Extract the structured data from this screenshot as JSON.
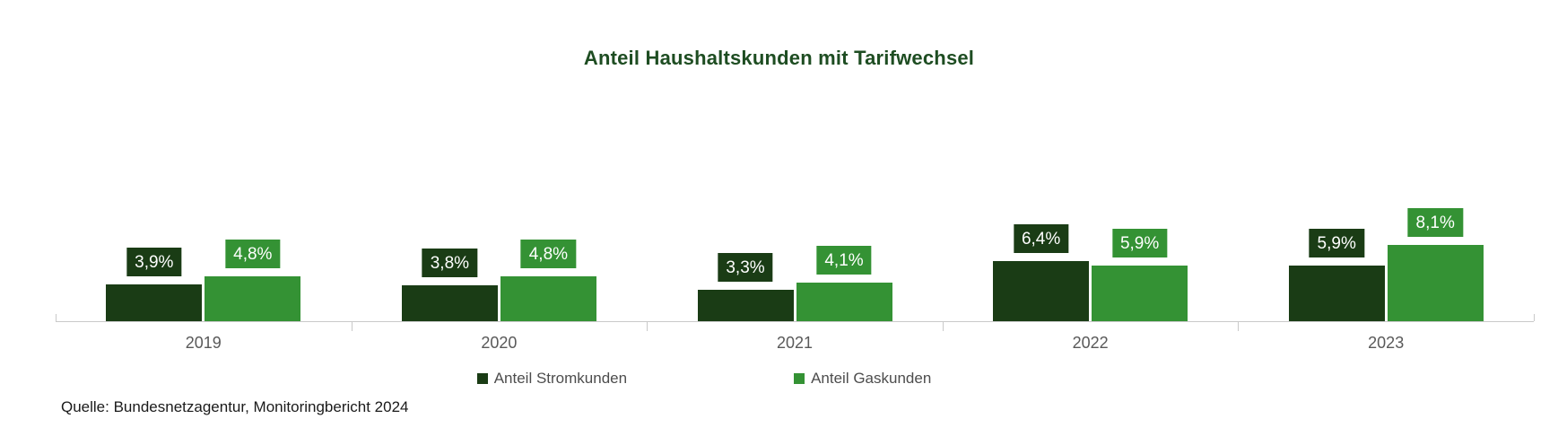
{
  "title": "Anteil Haushaltskunden mit Tarifwechsel",
  "source": "Quelle: Bundesnetzagentur, Monitoringbericht 2024",
  "colors": {
    "strom": "#1a3c15",
    "gas": "#349234",
    "title": "#1e4d22",
    "axis": "#c9c9c9",
    "tick_label": "#595959",
    "value_label_text": "#ffffff"
  },
  "chart_data": {
    "type": "bar",
    "title": "Anteil Haushaltskunden mit Tarifwechsel",
    "categories": [
      "2019",
      "2020",
      "2021",
      "2022",
      "2023"
    ],
    "series": [
      {
        "name": "Anteil Stromkunden",
        "color_key": "strom",
        "values": [
          3.9,
          3.8,
          3.3,
          6.4,
          5.9
        ],
        "labels": [
          "3,9%",
          "3,8%",
          "3,3%",
          "6,4%",
          "5,9%"
        ]
      },
      {
        "name": "Anteil Gaskunden",
        "color_key": "gas",
        "values": [
          4.8,
          4.8,
          4.1,
          5.9,
          8.1
        ],
        "labels": [
          "4,8%",
          "4,8%",
          "4,1%",
          "5,9%",
          "8,1%"
        ]
      }
    ],
    "xlabel": "",
    "ylabel": "",
    "ylim": [
      0,
      9
    ],
    "grid": false,
    "y_axis_visible": false,
    "legend_position": "bottom",
    "value_labels": "boxed, bar-colored background, white text, comma decimal"
  },
  "legend": {
    "items": [
      {
        "label": "Anteil Stromkunden",
        "color_key": "strom"
      },
      {
        "label": "Anteil Gaskunden",
        "color_key": "gas"
      }
    ]
  }
}
